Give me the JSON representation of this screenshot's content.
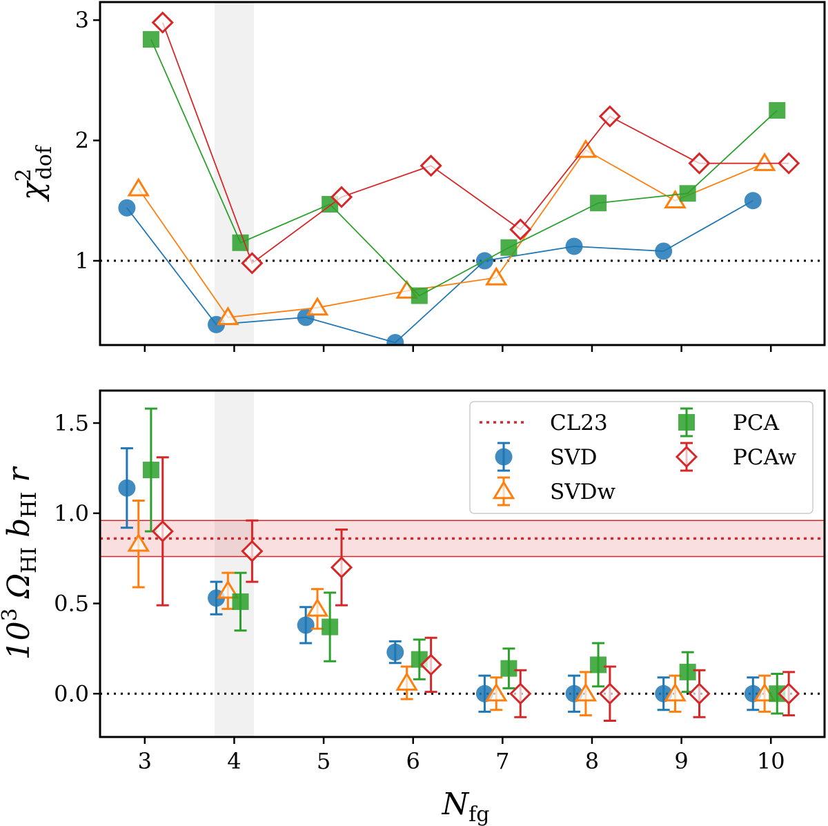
{
  "chart_data": {
    "type": "scatter",
    "x": [
      3,
      4,
      5,
      6,
      7,
      8,
      9,
      10
    ],
    "xlabel_main": "N",
    "xlabel_sub": "fg",
    "xtick_labels": [
      "3",
      "4",
      "5",
      "6",
      "7",
      "8",
      "9",
      "10"
    ],
    "xlim": [
      2.5,
      10.6
    ],
    "offsets": {
      "SVD": -0.2,
      "SVDw": -0.07,
      "PCA": 0.07,
      "PCAw": 0.2
    },
    "shaded_band_x": [
      3.78,
      4.22
    ],
    "colors": {
      "SVD": "#1f77b4",
      "SVDw": "#ff7f0e",
      "PCA": "#2ca02c",
      "PCAw": "#d62728",
      "shade": "#e8e8e8"
    },
    "panels": [
      {
        "id": "chi2",
        "ylabel_main": "χ",
        "ylabel_sup": "2",
        "ylabel_sub": "dof",
        "ylim": [
          0.3,
          3.15
        ],
        "yticks": [
          1,
          2,
          3
        ],
        "ytick_labels": [
          "1",
          "2",
          "3"
        ],
        "reference_line_y": 1,
        "series": [
          {
            "name": "SVD",
            "values": [
              1.44,
              0.47,
              0.53,
              0.32,
              1.0,
              1.12,
              1.08,
              1.5
            ]
          },
          {
            "name": "SVDw",
            "values": [
              1.6,
              0.53,
              0.61,
              0.75,
              0.86,
              1.92,
              1.5,
              1.81
            ]
          },
          {
            "name": "PCA",
            "values": [
              2.84,
              1.15,
              1.47,
              0.71,
              1.11,
              1.48,
              1.56,
              2.25
            ]
          },
          {
            "name": "PCAw",
            "values": [
              2.98,
              0.98,
              1.53,
              1.79,
              1.26,
              2.2,
              1.81,
              1.81
            ]
          }
        ]
      },
      {
        "id": "omega",
        "ylabel": "10³ Ω_HI b_HI r",
        "ylabel_parts": [
          "10",
          "3",
          " Ω",
          "HI",
          " b",
          "HI",
          " r"
        ],
        "ylim": [
          -0.24,
          1.68
        ],
        "yticks": [
          0.0,
          0.5,
          1.0,
          1.5
        ],
        "ytick_labels": [
          "0.0",
          "0.5",
          "1.0",
          "1.5"
        ],
        "reference_line_y": 0,
        "CL23": {
          "value": 0.86,
          "lower": 0.76,
          "upper": 0.96
        },
        "series": [
          {
            "name": "SVD",
            "values": [
              1.14,
              0.53,
              0.38,
              0.23,
              0.0,
              0.0,
              0.0,
              0.0
            ],
            "errors": [
              0.22,
              0.09,
              0.1,
              0.06,
              0.1,
              0.1,
              0.09,
              0.09
            ]
          },
          {
            "name": "SVDw",
            "values": [
              0.83,
              0.57,
              0.47,
              0.06,
              0.0,
              0.0,
              0.0,
              0.0
            ],
            "errors": [
              0.24,
              0.1,
              0.11,
              0.09,
              0.09,
              0.12,
              0.1,
              0.1
            ]
          },
          {
            "name": "PCA",
            "values": [
              1.24,
              0.51,
              0.37,
              0.19,
              0.14,
              0.16,
              0.12,
              0.0
            ],
            "errors": [
              0.34,
              0.16,
              0.19,
              0.11,
              0.11,
              0.12,
              0.11,
              0.11
            ]
          },
          {
            "name": "PCAw",
            "values": [
              0.9,
              0.79,
              0.7,
              0.16,
              0.0,
              0.0,
              0.0,
              0.0
            ],
            "errors": [
              0.41,
              0.17,
              0.21,
              0.15,
              0.13,
              0.15,
              0.13,
              0.12
            ]
          }
        ]
      }
    ],
    "legend": {
      "placement": "top-right",
      "entries": [
        {
          "key": "CL23",
          "label": "CL23"
        },
        {
          "key": "SVD",
          "label": "SVD"
        },
        {
          "key": "SVDw",
          "label": "SVDw"
        },
        {
          "key": "PCA",
          "label": "PCA"
        },
        {
          "key": "PCAw",
          "label": "PCAw"
        }
      ]
    }
  }
}
